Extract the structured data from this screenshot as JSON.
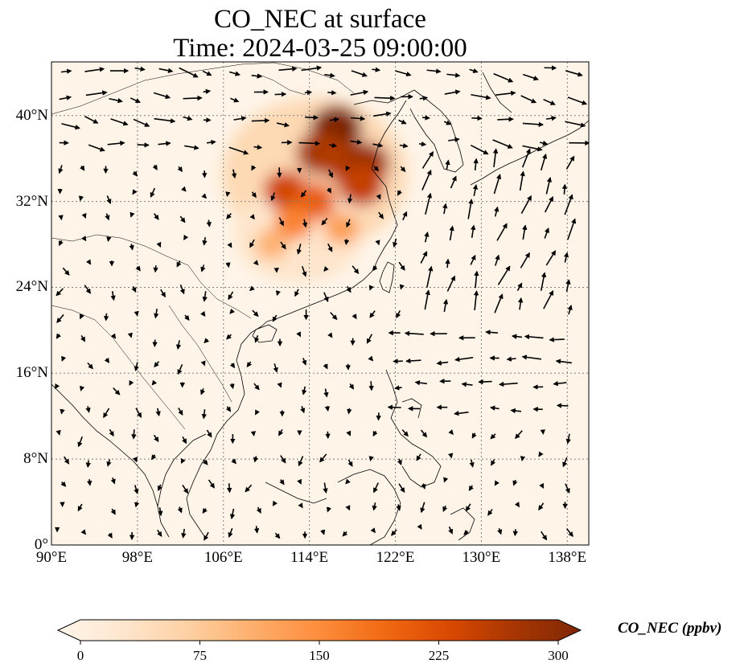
{
  "title_line1": "CO_NEC at surface",
  "title_line2": "Time: 2024-03-25 09:00:00",
  "map": {
    "lon_range": [
      90,
      140
    ],
    "lat_range": [
      0,
      45
    ],
    "lon_ticks": [
      {
        "value": 90,
        "label": "90°E"
      },
      {
        "value": 98,
        "label": "98°E"
      },
      {
        "value": 106,
        "label": "106°E"
      },
      {
        "value": 114,
        "label": "114°E"
      },
      {
        "value": 122,
        "label": "122°E"
      },
      {
        "value": 130,
        "label": "130°E"
      },
      {
        "value": 138,
        "label": "138°E"
      }
    ],
    "lat_ticks": [
      {
        "value": 0,
        "label": "0°"
      },
      {
        "value": 8,
        "label": "8°N"
      },
      {
        "value": 16,
        "label": "16°N"
      },
      {
        "value": 24,
        "label": "24°N"
      },
      {
        "value": 32,
        "label": "32°N"
      },
      {
        "value": 40,
        "label": "40°N"
      }
    ],
    "gridlines": true,
    "plume_regions": [
      {
        "lon": 116.5,
        "lat": 38.8,
        "level": 300
      },
      {
        "lon": 115.0,
        "lat": 36.5,
        "level": 260
      },
      {
        "lon": 117.5,
        "lat": 35.5,
        "level": 250
      },
      {
        "lon": 119.2,
        "lat": 35.5,
        "level": 270
      },
      {
        "lon": 118.8,
        "lat": 33.5,
        "level": 240
      },
      {
        "lon": 111.8,
        "lat": 33.0,
        "level": 230
      },
      {
        "lon": 114.5,
        "lat": 32.0,
        "level": 200
      },
      {
        "lon": 112.5,
        "lat": 30.0,
        "level": 160
      },
      {
        "lon": 117.0,
        "lat": 29.5,
        "level": 130
      },
      {
        "lon": 110.5,
        "lat": 28.0,
        "level": 110
      }
    ]
  },
  "colorbar": {
    "label": "CO_NEC (ppbv)",
    "min": 0,
    "max": 300,
    "ticks": [
      {
        "value": 0,
        "label": "0"
      },
      {
        "value": 75,
        "label": "75"
      },
      {
        "value": 150,
        "label": "150"
      },
      {
        "value": 225,
        "label": "225"
      },
      {
        "value": 300,
        "label": "300"
      }
    ],
    "colors": [
      "#fff5eb",
      "#fee6ce",
      "#fdd0a2",
      "#fdae6b",
      "#fd8d3c",
      "#f16913",
      "#d94801",
      "#a63603",
      "#7f2704"
    ],
    "extend": "both"
  }
}
